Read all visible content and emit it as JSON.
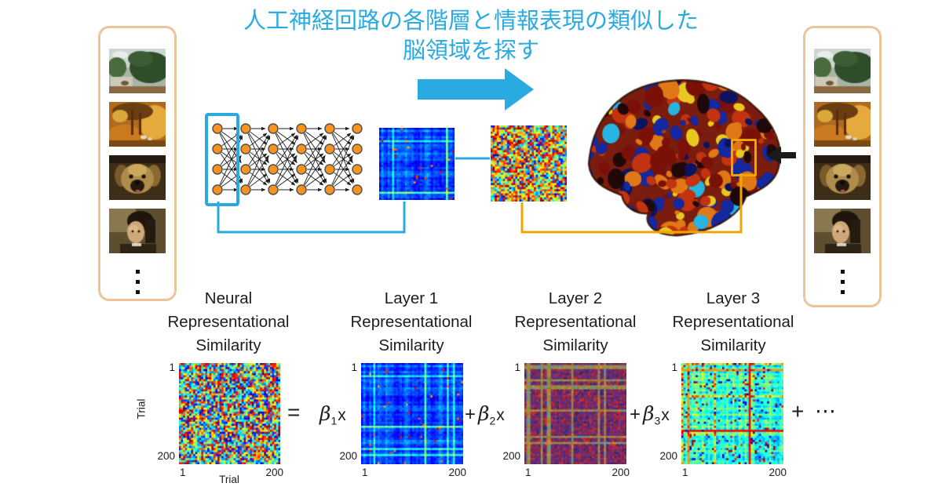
{
  "title": {
    "line1": "人工神経回路の各階層と情報表現の類似した",
    "line2": "脳領域を探す"
  },
  "colors": {
    "accent_blue": "#29ABE2",
    "accent_yellow": "#F0A400",
    "panel_border": "#EBC49B",
    "node_fill": "#F7931E",
    "arrow_black": "#1A1A1A",
    "text": "#231F20"
  },
  "stimulus_panels": {
    "left": {
      "images": [
        "landscape-painting",
        "autumn-forest-painting",
        "dog-painting",
        "portrait-painting"
      ],
      "ellipsis": "⋮"
    },
    "right": {
      "images": [
        "landscape-painting",
        "autumn-forest-painting",
        "dog-painting",
        "portrait-painting"
      ],
      "ellipsis": "⋮"
    }
  },
  "diagram": {
    "network": {
      "layers": 6,
      "nodes_per_layer": 4,
      "highlighted_layer": "layer-1"
    },
    "matrices_top": [
      {
        "name": "ann-layer1-rdm",
        "style": "layer1"
      },
      {
        "name": "brain-region-rdm",
        "style": "noise_warm"
      }
    ],
    "brain": {
      "name": "brain-activity-map",
      "highlight": "visual-region"
    }
  },
  "bottom_row": {
    "matrices": [
      {
        "label_lines": [
          "Neural",
          "Representational",
          "Similarity"
        ],
        "style": "noise",
        "y_tick_top": "1",
        "y_tick_bottom": "200",
        "x_tick_left": "1",
        "x_tick_right": "200",
        "y_axis_label": "Trial",
        "x_axis_label": "Trial"
      },
      {
        "label_lines": [
          "Layer 1",
          "Representational",
          "Similarity"
        ],
        "style": "layer1",
        "y_tick_top": "1",
        "y_tick_bottom": "200",
        "x_tick_left": "1",
        "x_tick_right": "200"
      },
      {
        "label_lines": [
          "Layer 2",
          "Representational",
          "Similarity"
        ],
        "style": "layer2",
        "y_tick_top": "1",
        "y_tick_bottom": "200",
        "x_tick_left": "1",
        "x_tick_right": "200"
      },
      {
        "label_lines": [
          "Layer 3",
          "Representational",
          "Similarity"
        ],
        "style": "layer3",
        "y_tick_top": "1",
        "y_tick_bottom": "200",
        "x_tick_left": "1",
        "x_tick_right": "200"
      }
    ],
    "equation": {
      "equals": "=",
      "terms": [
        {
          "prefix": "",
          "coef": "β",
          "sub": "1",
          "mult": "x"
        },
        {
          "prefix": "+",
          "coef": "β",
          "sub": "2",
          "mult": "x"
        },
        {
          "prefix": "+",
          "coef": "β",
          "sub": "3",
          "mult": "x"
        }
      ],
      "trailing_plus": "+",
      "trailing_dots": "⋯"
    }
  }
}
